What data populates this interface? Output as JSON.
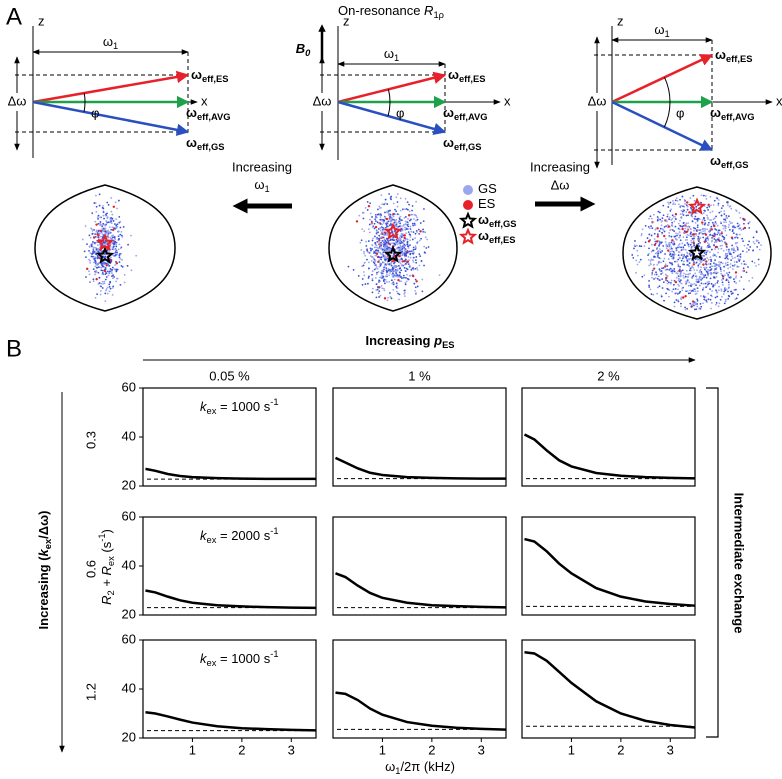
{
  "panel_a": {
    "label": "A",
    "title": [
      "On-resonance ",
      "R",
      "1ρ"
    ],
    "diagrams": [
      {
        "z": "z",
        "x": "x",
        "omega1": [
          "ω",
          "1"
        ],
        "delta": "Δω",
        "phi": "φ",
        "es": [
          "ω",
          "eff,ES"
        ],
        "avg": [
          "ω",
          "eff,AVG"
        ],
        "gs": [
          "ω",
          "eff,GS"
        ]
      },
      {
        "z": "z",
        "x": "x",
        "omega1": [
          "ω",
          "1"
        ],
        "delta": "Δω",
        "phi": "φ",
        "es": [
          "ω",
          "eff,ES"
        ],
        "avg": [
          "ω",
          "eff,AVG"
        ],
        "gs": [
          "ω",
          "eff,GS"
        ],
        "b0": [
          "B",
          "0"
        ]
      },
      {
        "z": "z",
        "x": "x",
        "omega1": [
          "ω",
          "1"
        ],
        "delta": "Δω",
        "phi": "φ",
        "es": [
          "ω",
          "eff,ES"
        ],
        "avg": [
          "ω",
          "eff,AVG"
        ],
        "gs": [
          "ω",
          "eff,GS"
        ]
      }
    ],
    "left_arrow": [
      "Increasing",
      "ω",
      "1"
    ],
    "right_arrow": [
      "Increasing",
      "Δω"
    ],
    "legend": [
      [
        "GS"
      ],
      [
        "ES"
      ],
      [
        "ω",
        "eff,GS"
      ],
      [
        "ω",
        "eff,ES"
      ]
    ]
  },
  "panel_b": {
    "label": "B",
    "top_label": [
      "Increasing ",
      "p",
      "ES"
    ],
    "columns": [
      "0.05 %",
      "1 %",
      "2 %"
    ],
    "rows": [
      "0.3",
      "0.6",
      "1.2"
    ],
    "left_label": [
      "Increasing (",
      "k",
      "ex",
      "/Δω)"
    ],
    "right_label": "Intermediate exchange",
    "y_label": [
      "R",
      "2",
      " + ",
      "R",
      "ex",
      " (s",
      "-1",
      ")"
    ],
    "x_label": [
      "ω",
      "1",
      "/2π (kHz)"
    ]
  },
  "chart_data": [
    {
      "type": "line",
      "color": "#000000",
      "x": [
        0.05,
        0.25,
        0.5,
        0.75,
        1,
        1.5,
        2,
        2.5,
        3,
        3.5
      ],
      "values": [
        27,
        26.2,
        24.9,
        24.1,
        23.6,
        23.2,
        23,
        22.9,
        22.9,
        22.9
      ],
      "reference": 22.8,
      "xlim": [
        0,
        3.5
      ],
      "ylim": [
        20,
        60
      ],
      "yticks": [
        20,
        40,
        60
      ],
      "annotation": [
        "k",
        "ex",
        " = 1000 s",
        "-1"
      ]
    },
    {
      "type": "line",
      "color": "#000000",
      "x": [
        0.05,
        0.25,
        0.5,
        0.75,
        1,
        1.5,
        2,
        2.5,
        3,
        3.5
      ],
      "values": [
        31.5,
        29.6,
        27.2,
        25.4,
        24.5,
        23.6,
        23.3,
        23.1,
        23,
        23
      ],
      "reference": 23,
      "xlim": [
        0,
        3.5
      ],
      "ylim": [
        20,
        60
      ]
    },
    {
      "type": "line",
      "color": "#000000",
      "x": [
        0.05,
        0.25,
        0.5,
        0.75,
        1,
        1.5,
        2,
        2.5,
        3,
        3.5
      ],
      "values": [
        41,
        39,
        34.5,
        30.5,
        28,
        25.3,
        24.2,
        23.6,
        23.3,
        23.1
      ],
      "reference": 23,
      "xlim": [
        0,
        3.5
      ],
      "ylim": [
        20,
        60
      ]
    },
    {
      "type": "line",
      "color": "#000000",
      "x": [
        0.05,
        0.25,
        0.5,
        0.75,
        1,
        1.5,
        2,
        2.5,
        3,
        3.5
      ],
      "values": [
        30,
        29.2,
        27.5,
        26,
        25,
        24,
        23.5,
        23.2,
        23,
        22.9
      ],
      "reference": 23,
      "xlim": [
        0,
        3.5
      ],
      "ylim": [
        20,
        60
      ],
      "yticks": [
        20,
        40,
        60
      ],
      "annotation": [
        "k",
        "ex",
        " = 2000 s",
        "-1"
      ]
    },
    {
      "type": "line",
      "color": "#000000",
      "x": [
        0.05,
        0.25,
        0.5,
        0.75,
        1,
        1.5,
        2,
        2.5,
        3,
        3.5
      ],
      "values": [
        37,
        35.5,
        32,
        29,
        27,
        25,
        24,
        23.6,
        23.3,
        23.1
      ],
      "reference": 23,
      "xlim": [
        0,
        3.5
      ],
      "ylim": [
        20,
        60
      ]
    },
    {
      "type": "line",
      "color": "#000000",
      "x": [
        0.05,
        0.25,
        0.5,
        0.75,
        1,
        1.5,
        2,
        2.5,
        3,
        3.5
      ],
      "values": [
        51,
        50,
        46,
        41,
        37,
        31,
        27.5,
        25.5,
        24.5,
        23.8
      ],
      "reference": 23.5,
      "xlim": [
        0,
        3.5
      ],
      "ylim": [
        20,
        60
      ]
    },
    {
      "type": "line",
      "color": "#000000",
      "x": [
        0.05,
        0.25,
        0.5,
        0.75,
        1,
        1.5,
        2,
        2.5,
        3,
        3.5
      ],
      "values": [
        30.5,
        30,
        28.8,
        27.5,
        26.3,
        24.8,
        24,
        23.6,
        23.3,
        23.1
      ],
      "reference": 23,
      "xlim": [
        0,
        3.5
      ],
      "ylim": [
        20,
        60
      ],
      "yticks": [
        20,
        40,
        60
      ],
      "xticks": [
        1,
        2,
        3
      ],
      "annotation": [
        "k",
        "ex",
        " = 1000 s",
        "-1"
      ]
    },
    {
      "type": "line",
      "color": "#000000",
      "x": [
        0.05,
        0.25,
        0.5,
        0.75,
        1,
        1.5,
        2,
        2.5,
        3,
        3.5
      ],
      "values": [
        38.5,
        38,
        35.5,
        32,
        29.5,
        26.5,
        25,
        24.2,
        23.7,
        23.4
      ],
      "reference": 23.5,
      "xlim": [
        0,
        3.5
      ],
      "ylim": [
        20,
        60
      ],
      "xticks": [
        1,
        2,
        3
      ]
    },
    {
      "type": "line",
      "color": "#000000",
      "x": [
        0.05,
        0.25,
        0.5,
        0.75,
        1,
        1.5,
        2,
        2.5,
        3,
        3.5
      ],
      "values": [
        55,
        54.5,
        51.5,
        47,
        42.5,
        35,
        30,
        27,
        25.3,
        24.3
      ],
      "reference": 24.8,
      "xlim": [
        0,
        3.5
      ],
      "ylim": [
        20,
        60
      ],
      "xticks": [
        1,
        2,
        3
      ]
    }
  ]
}
